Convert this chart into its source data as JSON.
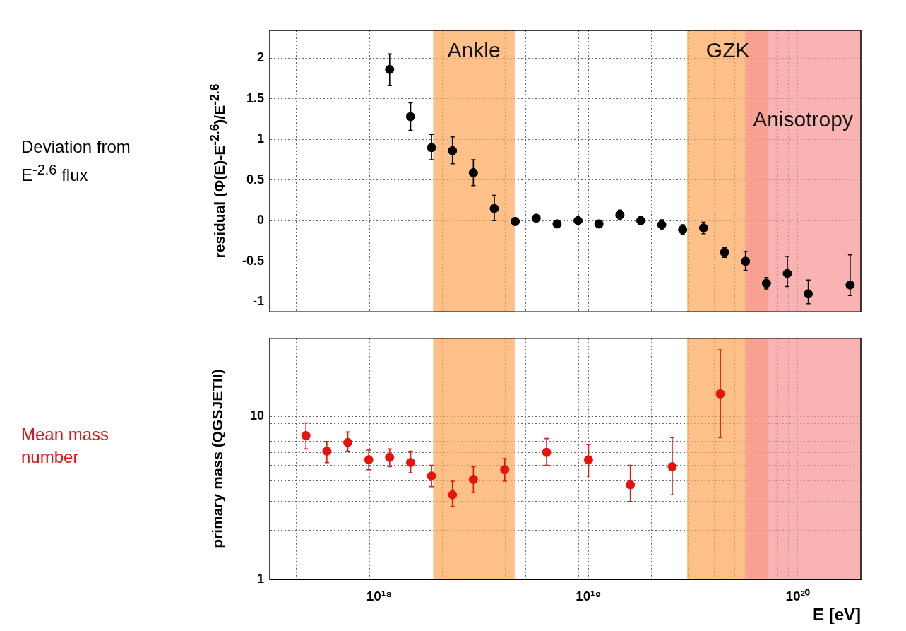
{
  "chart_data": [
    {
      "type": "scatter",
      "ylabel": "residual (Φ(E)-E$^{-2.6}$)/E$^{-2.6}$",
      "annotations": [
        "Deviation from E$^{-2.6}$ flux"
      ],
      "log": "x",
      "grid": true,
      "marker": "circle",
      "tick_labels": "y",
      "xlim": [
        3e+17,
        2e+20
      ],
      "xticks": [
        {
          "value": 4e+17,
          "label": null
        },
        {
          "value": 5e+17,
          "label": null
        },
        {
          "value": 6e+17,
          "label": null
        },
        {
          "value": 7e+17,
          "label": null
        },
        {
          "value": 8e+17,
          "label": null
        },
        {
          "value": 9e+17,
          "label": null
        },
        {
          "value": 1e+18,
          "label": null
        },
        {
          "value": 2e+18,
          "label": null
        },
        {
          "value": 3e+18,
          "label": null
        },
        {
          "value": 4e+18,
          "label": null
        },
        {
          "value": 5e+18,
          "label": null
        },
        {
          "value": 6e+18,
          "label": null
        },
        {
          "value": 7e+18,
          "label": null
        },
        {
          "value": 8e+18,
          "label": null
        },
        {
          "value": 9e+18,
          "label": null
        },
        {
          "value": 1e+19,
          "label": null
        },
        {
          "value": 2e+19,
          "label": null
        },
        {
          "value": 3e+19,
          "label": null
        },
        {
          "value": 4e+19,
          "label": null
        },
        {
          "value": 5e+19,
          "label": null
        },
        {
          "value": 6e+19,
          "label": null
        },
        {
          "value": 7e+19,
          "label": null
        },
        {
          "value": 8e+19,
          "label": null
        },
        {
          "value": 9e+19,
          "label": null
        },
        {
          "value": 1e+20,
          "label": null
        }
      ],
      "ylim": [
        -1.12,
        2.34
      ],
      "yticks": [
        -1,
        -0.5,
        0,
        0.5,
        1,
        1.5,
        2
      ],
      "series": [
        {
          "color": "#000000",
          "x": [
            1.122e+18,
            1.413e+18,
            1.778e+18,
            2.239e+18,
            2.818e+18,
            3.548e+18,
            4.467e+18,
            5.623e+18,
            7.079e+18,
            8.913e+18,
            1.122e+19,
            1.413e+19,
            1.778e+19,
            2.239e+19,
            2.818e+19,
            3.548e+19,
            4.467e+19,
            5.623e+19,
            7.079e+19,
            8.913e+19,
            1.122e+20,
            1.778e+20
          ],
          "values": [
            1.86,
            1.28,
            0.9,
            0.86,
            0.59,
            0.15,
            -0.01,
            0.03,
            -0.04,
            0.0,
            -0.04,
            0.07,
            0.0,
            -0.05,
            -0.11,
            -0.09,
            -0.39,
            -0.5,
            -0.77,
            -0.65,
            -0.9,
            -0.79
          ],
          "errors": [
            [
              1.66,
              2.05
            ],
            [
              1.11,
              1.45
            ],
            [
              0.75,
              1.06
            ],
            [
              0.7,
              1.03
            ],
            [
              0.43,
              0.75
            ],
            [
              0.0,
              0.31
            ],
            null,
            null,
            null,
            null,
            null,
            [
              0.01,
              0.13
            ],
            [
              -0.05,
              0.05
            ],
            [
              -0.11,
              0.01
            ],
            [
              -0.17,
              -0.05
            ],
            [
              -0.16,
              -0.02
            ],
            [
              -0.45,
              -0.33
            ],
            [
              -0.61,
              -0.38
            ],
            [
              -0.84,
              -0.7
            ],
            [
              -0.81,
              -0.44
            ],
            [
              -1.02,
              -0.73
            ],
            [
              -0.92,
              -0.42
            ]
          ]
        }
      ],
      "bands": [
        {
          "axis": "x",
          "from": 1.81e+18,
          "to": 4.44e+18,
          "label": "Ankle",
          "color": "#fba85a"
        },
        {
          "axis": "x",
          "from": 2.96e+19,
          "to": 7.24e+19,
          "label": "GZK",
          "color": "#fba85a"
        },
        {
          "axis": "x",
          "from": 5.6e+19,
          "to": 2e+20,
          "label": "Anisotropy",
          "color": "#f89595"
        }
      ]
    },
    {
      "type": "scatter",
      "ylabel": "primary mass (QGSJETII)",
      "xlabel": "E [eV]",
      "annotations": [
        "Mean mass number"
      ],
      "log": "xy",
      "grid": true,
      "marker": "circle",
      "xlim": [
        3e+17,
        2e+20
      ],
      "xticks": [
        {
          "value": 4e+17,
          "label": null
        },
        {
          "value": 5e+17,
          "label": null
        },
        {
          "value": 6e+17,
          "label": null
        },
        {
          "value": 7e+17,
          "label": null
        },
        {
          "value": 8e+17,
          "label": null
        },
        {
          "value": 9e+17,
          "label": null
        },
        {
          "value": 1e+18,
          "label": "10¹⁸"
        },
        {
          "value": 2e+18,
          "label": null
        },
        {
          "value": 3e+18,
          "label": null
        },
        {
          "value": 4e+18,
          "label": null
        },
        {
          "value": 5e+18,
          "label": null
        },
        {
          "value": 6e+18,
          "label": null
        },
        {
          "value": 7e+18,
          "label": null
        },
        {
          "value": 8e+18,
          "label": null
        },
        {
          "value": 9e+18,
          "label": null
        },
        {
          "value": 1e+19,
          "label": "10¹⁹"
        },
        {
          "value": 2e+19,
          "label": null
        },
        {
          "value": 3e+19,
          "label": null
        },
        {
          "value": 4e+19,
          "label": null
        },
        {
          "value": 5e+19,
          "label": null
        },
        {
          "value": 6e+19,
          "label": null
        },
        {
          "value": 7e+19,
          "label": null
        },
        {
          "value": 8e+19,
          "label": null
        },
        {
          "value": 9e+19,
          "label": null
        },
        {
          "value": 1e+20,
          "label": "10²⁰"
        }
      ],
      "ylim": [
        1,
        30
      ],
      "yticks": [
        1,
        {
          "value": 2,
          "label": null
        },
        {
          "value": 3,
          "label": null
        },
        {
          "value": 4,
          "label": null
        },
        {
          "value": 5,
          "label": null
        },
        {
          "value": 6,
          "label": null
        },
        {
          "value": 7,
          "label": null
        },
        {
          "value": 8,
          "label": null
        },
        {
          "value": 9,
          "label": null
        },
        10,
        {
          "value": 20,
          "label": null
        }
      ],
      "series": [
        {
          "color": "#e8120c",
          "x": [
            4.467e+17,
            5.623e+17,
            7.079e+17,
            8.913e+17,
            1.122e+18,
            1.413e+18,
            1.778e+18,
            2.239e+18,
            2.818e+18,
            3.981e+18,
            6.31e+18,
            1e+19,
            1.585e+19,
            2.512e+19,
            4.266e+19
          ],
          "values": [
            7.6,
            6.1,
            6.9,
            5.4,
            5.6,
            5.2,
            4.3,
            3.3,
            4.1,
            4.7,
            6.0,
            5.4,
            3.8,
            4.9,
            13.7
          ],
          "errors": [
            [
              6.3,
              9.1
            ],
            [
              5.2,
              7.0
            ],
            [
              6.1,
              8.0
            ],
            [
              4.7,
              6.2
            ],
            [
              4.9,
              6.3
            ],
            [
              4.5,
              6.1
            ],
            [
              3.7,
              5.0
            ],
            [
              2.8,
              4.0
            ],
            [
              3.4,
              4.9
            ],
            [
              4.0,
              5.5
            ],
            [
              5.0,
              7.3
            ],
            [
              4.3,
              6.7
            ],
            [
              3.0,
              5.0
            ],
            [
              3.3,
              7.4
            ],
            [
              7.4,
              25.5
            ]
          ]
        }
      ],
      "bands": [
        {
          "axis": "x",
          "from": 1.81e+18,
          "to": 4.44e+18,
          "color": "#fba85a"
        },
        {
          "axis": "x",
          "from": 2.96e+19,
          "to": 7.24e+19,
          "color": "#fba85a"
        },
        {
          "axis": "x",
          "from": 5.6e+19,
          "to": 2e+20,
          "color": "#f89595"
        }
      ]
    }
  ]
}
